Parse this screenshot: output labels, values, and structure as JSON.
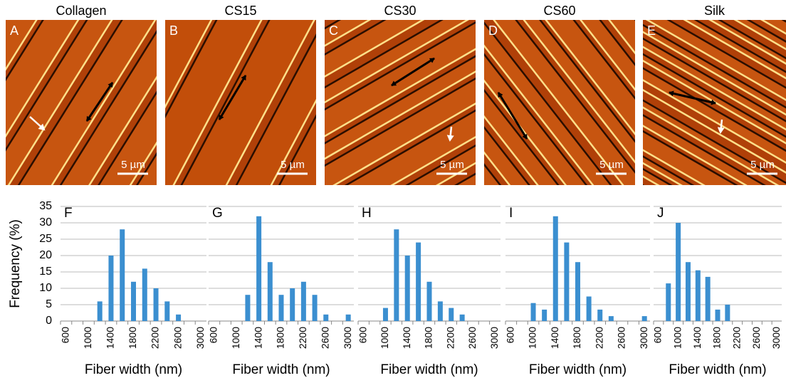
{
  "images": [
    {
      "title": "Collagen",
      "letter": "A",
      "scale_bar": "5 µm"
    },
    {
      "title": "CS15",
      "letter": "B",
      "scale_bar": "5 µm"
    },
    {
      "title": "CS30",
      "letter": "C",
      "scale_bar": "5 µm"
    },
    {
      "title": "CS60",
      "letter": "D",
      "scale_bar": "5 µm"
    },
    {
      "title": "Silk",
      "letter": "E",
      "scale_bar": "5 µm"
    }
  ],
  "chart_data": [
    {
      "type": "bar",
      "panel": "F",
      "ylabel": "Frequency (%)",
      "xlabel": "Fiber width (nm)",
      "color": "#3b8fd0",
      "categories": [
        "600",
        null,
        "1000",
        null,
        "1400",
        null,
        "1800",
        null,
        "2200",
        null,
        "2600",
        null,
        "3000"
      ],
      "values": [
        0,
        0,
        0,
        6,
        20,
        28,
        12,
        16,
        10,
        6,
        2,
        0,
        0
      ],
      "ylim": [
        0,
        35
      ],
      "yticks": [
        0,
        5,
        10,
        15,
        20,
        25,
        30,
        35
      ],
      "grid": true
    },
    {
      "type": "bar",
      "panel": "G",
      "xlabel": "Fiber width (nm)",
      "color": "#3b8fd0",
      "categories": [
        "600",
        null,
        "1000",
        null,
        "1400",
        null,
        "1800",
        null,
        "2200",
        null,
        "2600",
        null,
        "3000"
      ],
      "values": [
        0,
        0,
        0,
        8,
        32,
        18,
        8,
        10,
        12,
        8,
        2,
        0,
        2
      ],
      "ylim": [
        0,
        35
      ],
      "yticks": [
        0,
        5,
        10,
        15,
        20,
        25,
        30,
        35
      ],
      "grid": true
    },
    {
      "type": "bar",
      "panel": "H",
      "xlabel": "Fiber width (nm)",
      "color": "#3b8fd0",
      "categories": [
        "600",
        null,
        "1000",
        null,
        "1400",
        null,
        "1800",
        null,
        "2200",
        null,
        "2600",
        null,
        "3000"
      ],
      "values": [
        0,
        0,
        4,
        28,
        20,
        24,
        12,
        6,
        4,
        2,
        0,
        0,
        0
      ],
      "ylim": [
        0,
        35
      ],
      "yticks": [
        0,
        5,
        10,
        15,
        20,
        25,
        30,
        35
      ],
      "grid": true
    },
    {
      "type": "bar",
      "panel": "I",
      "xlabel": "Fiber width (nm)",
      "color": "#3b8fd0",
      "categories": [
        "600",
        null,
        "1000",
        null,
        "1400",
        null,
        "1800",
        null,
        "2200",
        null,
        "2600",
        null,
        "3000"
      ],
      "values": [
        0,
        0,
        5.5,
        3.5,
        32,
        24,
        18,
        7.5,
        3.5,
        1.5,
        0,
        0,
        1.5
      ],
      "ylim": [
        0,
        35
      ],
      "yticks": [
        0,
        5,
        10,
        15,
        20,
        25,
        30,
        35
      ],
      "grid": true
    },
    {
      "type": "bar",
      "panel": "J",
      "xlabel": "Fiber width (nm)",
      "color": "#3b8fd0",
      "categories": [
        "600",
        null,
        "1000",
        null,
        "1400",
        null,
        "1800",
        null,
        "2200",
        null,
        "2600",
        null,
        "3000"
      ],
      "values": [
        0,
        11.5,
        30,
        18,
        15.5,
        13.5,
        3.5,
        5,
        0,
        0,
        0,
        0,
        0
      ],
      "ylim": [
        0,
        35
      ],
      "yticks": [
        0,
        5,
        10,
        15,
        20,
        25,
        30,
        35
      ],
      "grid": true
    }
  ]
}
